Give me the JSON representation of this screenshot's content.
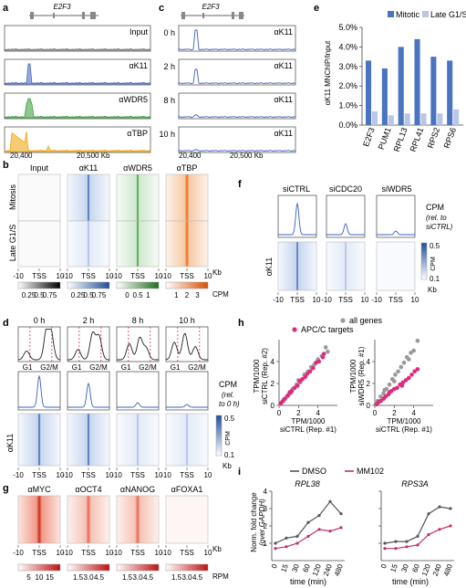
{
  "panels": {
    "a": {
      "letter": "a",
      "gene": "E2F3",
      "tracks": [
        "Input",
        "αK11",
        "αWDR5",
        "αTBP"
      ],
      "x_ticks": [
        "20,400",
        "20,500 Kb"
      ]
    },
    "b": {
      "letter": "b",
      "columns": [
        "Input",
        "αK11",
        "αWDR5",
        "αTBP"
      ],
      "rows": [
        "Mitosis",
        "Late G1/S"
      ],
      "x_ticks": [
        "-10",
        "TSS",
        "10"
      ],
      "unit_kb": "Kb",
      "scales": [
        [
          "0.25",
          "0.5",
          "0.75"
        ],
        [
          "0.25",
          "0.5",
          "0.75"
        ],
        [
          "0",
          "0.5",
          "1"
        ],
        [
          "1",
          "2",
          "3"
        ]
      ],
      "unit_cpm": "CPM"
    },
    "c": {
      "letter": "c",
      "gene": "E2F3",
      "times": [
        "0 h",
        "2 h",
        "8 h",
        "10 h"
      ],
      "track_label": "αK11",
      "x_ticks": [
        "20,400",
        "20,500 Kb"
      ]
    },
    "d": {
      "letter": "d",
      "times": [
        "0 h",
        "2 h",
        "8 h",
        "10 h"
      ],
      "phase_labels": [
        "G1",
        "G2/M"
      ],
      "cpm_label": [
        "CPM",
        "(rel.",
        "to 0 h)"
      ],
      "row_label": "αK11",
      "x_ticks": [
        "-10",
        "TSS",
        "10"
      ],
      "scale_ticks": [
        "0.5",
        "CPM",
        "0.1"
      ],
      "unit_kb": "Kb"
    },
    "e": {
      "letter": "e",
      "ylabel": "αK11 MNChIP/Input",
      "yticks": [
        "0.0%",
        "1.0%",
        "2.0%",
        "3.0%",
        "4.0%",
        "5.0%"
      ],
      "legend": [
        "Mitotic",
        "Late G1/S"
      ]
    },
    "f": {
      "letter": "f",
      "columns": [
        "siCTRL",
        "siCDC20",
        "siWDR5"
      ],
      "cpm_label": [
        "CPM",
        "(rel. to",
        "siCTRL)"
      ],
      "row_label": "αK11",
      "x_ticks": [
        "-10",
        "TSS",
        "10"
      ],
      "scale_ticks": [
        "0.5",
        "CPM",
        "0.1"
      ],
      "unit_kb": "Kb"
    },
    "g": {
      "letter": "g",
      "columns": [
        "αMYC",
        "αOCT4",
        "αNANOG",
        "αFOXA1"
      ],
      "x_ticks": [
        "-10",
        "TSS",
        "10"
      ],
      "unit_kb": "Kb",
      "scales": [
        [
          "5",
          "10",
          "15"
        ],
        [
          "1.5",
          "3.0",
          "4.5"
        ],
        [
          "1.5",
          "3.0",
          "4.5"
        ],
        [
          "1.5",
          "3.0",
          "4.5"
        ]
      ],
      "unit": "RPM"
    },
    "h": {
      "letter": "h",
      "legend": [
        "all genes",
        "APC/C targets"
      ],
      "left": {
        "ylabel": [
          "TPM/1000",
          "siCTRL (Rep. #2)"
        ],
        "xlabel": [
          "TPM/1000",
          "siCTRL (Rep. #1)"
        ]
      },
      "right": {
        "ylabel": [
          "TPM/1000",
          "siWDR5 (Rep. #1)"
        ],
        "xlabel": [
          "TPM/1000",
          "siCTRL (Rep. #1)"
        ]
      },
      "ticks": [
        "0",
        "2",
        "4"
      ]
    },
    "i": {
      "letter": "i",
      "legend": [
        "DMSO",
        "MM102"
      ],
      "genes": [
        "RPL38",
        "RPS3A"
      ],
      "ylabel": [
        "Norm. fold change",
        "(over GAPDH)"
      ],
      "yticks": [
        "1",
        "2",
        "3",
        "4"
      ],
      "xlabel": "time (min)"
    }
  },
  "colors": {
    "mitotic": "#4a73c0",
    "late": "#b9c6e6",
    "input": "#777777",
    "k11": "#3b5fc0",
    "wdr5": "#2f9a2f",
    "tbp": "#f0a000",
    "apc": "#e0287d",
    "all": "#999999",
    "mm102": "#c0306e",
    "dmso": "#555555"
  },
  "chart_data": [
    {
      "type": "bar",
      "ylabel": "αK11 MNChIP/Input",
      "categories": [
        "E2F3",
        "PUM1",
        "RPL13",
        "RPL41",
        "RPS2",
        "RPS6"
      ],
      "ylim": [
        0,
        5
      ],
      "series": [
        {
          "name": "Mitotic",
          "values": [
            3.3,
            2.9,
            4.0,
            4.4,
            3.5,
            3.3
          ]
        },
        {
          "name": "Late G1/S",
          "values": [
            0.7,
            0.5,
            0.6,
            0.6,
            0.6,
            0.8
          ]
        }
      ],
      "legend": "top-right"
    },
    {
      "type": "scatter",
      "xlabel": "TPM/1000 siCTRL (Rep. #1)",
      "ylabel": "TPM/1000 siCTRL (Rep. #2)",
      "xlim": [
        0,
        6
      ],
      "ylim": [
        0,
        6
      ],
      "series": [
        {
          "name": "all genes",
          "points": [
            [
              0.1,
              0.1
            ],
            [
              0.3,
              0.3
            ],
            [
              0.5,
              0.55
            ],
            [
              0.8,
              0.8
            ],
            [
              1.0,
              1.0
            ],
            [
              1.4,
              1.5
            ],
            [
              1.8,
              1.9
            ],
            [
              2.2,
              2.1
            ],
            [
              2.6,
              2.8
            ],
            [
              3.0,
              3.1
            ],
            [
              3.6,
              3.7
            ],
            [
              4.0,
              4.2
            ],
            [
              4.4,
              4.5
            ],
            [
              4.8,
              5.3
            ],
            [
              5.0,
              4.9
            ],
            [
              2.0,
              2.3
            ],
            [
              1.2,
              1.1
            ],
            [
              3.3,
              3.5
            ]
          ]
        },
        {
          "name": "APC/C targets",
          "points": [
            [
              0.2,
              0.2
            ],
            [
              0.4,
              0.4
            ],
            [
              0.6,
              0.6
            ],
            [
              0.9,
              0.9
            ],
            [
              1.1,
              1.2
            ],
            [
              1.3,
              1.3
            ],
            [
              1.6,
              1.6
            ],
            [
              1.9,
              1.8
            ],
            [
              2.1,
              2.2
            ],
            [
              2.4,
              2.4
            ],
            [
              2.7,
              2.6
            ],
            [
              2.9,
              2.9
            ],
            [
              3.2,
              3.1
            ],
            [
              3.5,
              3.4
            ],
            [
              3.8,
              3.9
            ],
            [
              4.1,
              4.0
            ],
            [
              4.5,
              4.4
            ],
            [
              4.6,
              4.7
            ]
          ]
        }
      ]
    },
    {
      "type": "scatter",
      "xlabel": "TPM/1000 siCTRL (Rep. #1)",
      "ylabel": "TPM/1000 siWDR5 (Rep. #1)",
      "xlim": [
        0,
        6
      ],
      "ylim": [
        0,
        6
      ],
      "series": [
        {
          "name": "all genes",
          "points": [
            [
              0.1,
              0.1
            ],
            [
              0.3,
              0.4
            ],
            [
              0.6,
              0.8
            ],
            [
              0.9,
              1.1
            ],
            [
              1.2,
              1.5
            ],
            [
              1.5,
              1.9
            ],
            [
              1.8,
              2.4
            ],
            [
              2.1,
              2.8
            ],
            [
              2.4,
              3.1
            ],
            [
              2.7,
              3.5
            ],
            [
              3.0,
              3.9
            ],
            [
              3.3,
              4.4
            ],
            [
              3.7,
              4.8
            ],
            [
              4.0,
              5.0
            ],
            [
              4.4,
              5.9
            ],
            [
              2.0,
              2.2
            ],
            [
              1.0,
              1.4
            ],
            [
              3.5,
              4.2
            ]
          ]
        },
        {
          "name": "APC/C targets",
          "points": [
            [
              0.2,
              0.1
            ],
            [
              0.4,
              0.3
            ],
            [
              0.6,
              0.4
            ],
            [
              0.9,
              0.6
            ],
            [
              1.1,
              0.8
            ],
            [
              1.4,
              1.0
            ],
            [
              1.7,
              1.3
            ],
            [
              2.0,
              1.5
            ],
            [
              2.3,
              1.6
            ],
            [
              2.6,
              1.9
            ],
            [
              2.9,
              2.1
            ],
            [
              3.2,
              2.3
            ],
            [
              3.5,
              2.5
            ],
            [
              3.8,
              2.8
            ],
            [
              4.1,
              3.1
            ],
            [
              4.4,
              3.3
            ],
            [
              1.5,
              1.2
            ],
            [
              2.8,
              1.8
            ]
          ]
        }
      ]
    },
    {
      "type": "line",
      "title": "RPL38",
      "xlabel": "time (min)",
      "ylabel": "Norm. fold change (over GAPDH)",
      "categories": [
        "0",
        "15",
        "30",
        "60",
        "120",
        "240",
        "480"
      ],
      "ylim": [
        0,
        4
      ],
      "series": [
        {
          "name": "DMSO",
          "values": [
            1.0,
            1.3,
            1.4,
            2.2,
            2.6,
            3.4,
            2.7
          ]
        },
        {
          "name": "MM102",
          "values": [
            0.7,
            0.8,
            1.0,
            1.4,
            1.8,
            1.7,
            1.9
          ]
        }
      ]
    },
    {
      "type": "line",
      "title": "RPS3A",
      "xlabel": "time (min)",
      "ylabel": "Norm. fold change (over GAPDH)",
      "categories": [
        "0",
        "15",
        "30",
        "60",
        "120",
        "240",
        "480"
      ],
      "ylim": [
        0,
        4
      ],
      "series": [
        {
          "name": "DMSO",
          "values": [
            1.0,
            1.1,
            1.1,
            1.4,
            2.7,
            3.1,
            3.0
          ]
        },
        {
          "name": "MM102",
          "values": [
            0.7,
            0.7,
            0.8,
            0.9,
            1.5,
            1.8,
            2.0
          ]
        }
      ]
    }
  ]
}
